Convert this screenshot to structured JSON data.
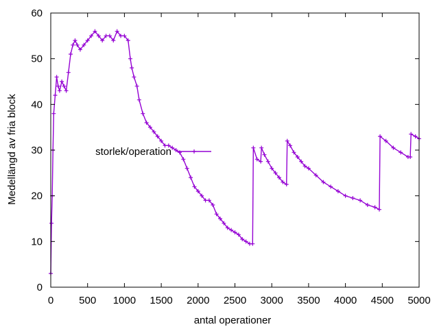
{
  "chart_data": {
    "type": "line",
    "title": "",
    "xlabel": "antal operationer",
    "ylabel": "Medellängd av fria block",
    "xlim": [
      0,
      5000
    ],
    "ylim": [
      0,
      60
    ],
    "xticks": [
      "0",
      "500",
      "1000",
      "1500",
      "2000",
      "2500",
      "3000",
      "3500",
      "4000",
      "4500",
      "5000"
    ],
    "yticks": [
      "0",
      "10",
      "20",
      "30",
      "40",
      "50",
      "60"
    ],
    "grid": false,
    "legend_position": "upper-left",
    "marker": "plus",
    "series": [
      {
        "name": "storlek/operation",
        "color": "#9400d3",
        "x": [
          0,
          10,
          20,
          30,
          40,
          60,
          80,
          100,
          120,
          150,
          180,
          210,
          240,
          270,
          300,
          330,
          360,
          400,
          450,
          500,
          550,
          600,
          650,
          700,
          750,
          800,
          850,
          900,
          950,
          1000,
          1050,
          1080,
          1100,
          1130,
          1170,
          1200,
          1250,
          1300,
          1350,
          1400,
          1450,
          1500,
          1550,
          1600,
          1650,
          1700,
          1750,
          1800,
          1850,
          1900,
          1950,
          2000,
          2050,
          2100,
          2150,
          2200,
          2250,
          2300,
          2350,
          2400,
          2450,
          2500,
          2550,
          2600,
          2650,
          2700,
          2740,
          2750,
          2800,
          2850,
          2860,
          2900,
          2950,
          3000,
          3050,
          3100,
          3150,
          3200,
          3210,
          3250,
          3300,
          3350,
          3400,
          3450,
          3500,
          3600,
          3700,
          3800,
          3900,
          4000,
          4100,
          4200,
          4300,
          4400,
          4460,
          4470,
          4550,
          4650,
          4750,
          4850,
          4880,
          4890,
          4950,
          5000
        ],
        "y": [
          3,
          14,
          20,
          30,
          38,
          42,
          46,
          44,
          43,
          45,
          44,
          43,
          47,
          51,
          53,
          54,
          53,
          52,
          53,
          54,
          55,
          56,
          55,
          54,
          55,
          55,
          54,
          56,
          55,
          55,
          54,
          50,
          48,
          46,
          44,
          41,
          38,
          36,
          35,
          34,
          33,
          32,
          31,
          31,
          30.5,
          30,
          29.5,
          28,
          26,
          24,
          22,
          21,
          20,
          19,
          19,
          18,
          16,
          15,
          14,
          13,
          12.5,
          12,
          11.5,
          10.5,
          10,
          9.5,
          9.5,
          30.5,
          28,
          27.5,
          30.5,
          29,
          27.5,
          26,
          25,
          24,
          23,
          22.5,
          32,
          31,
          29.5,
          28.5,
          27.5,
          26.5,
          26,
          24.5,
          23,
          22,
          21,
          20,
          19.5,
          19,
          18,
          17.5,
          17,
          33,
          32,
          30.5,
          29.5,
          28.5,
          28.5,
          33.5,
          33,
          32.5
        ]
      }
    ]
  }
}
